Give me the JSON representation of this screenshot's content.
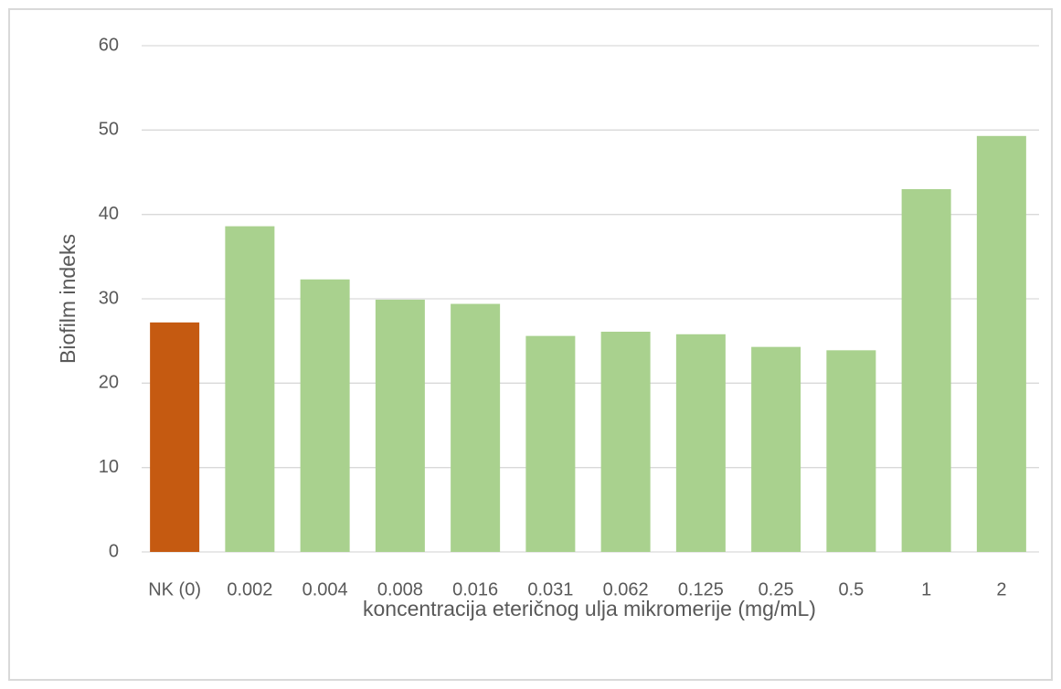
{
  "chart_data": {
    "type": "bar",
    "xlabel": "koncentracija eteričnog ulja mikromerije (mg/mL)",
    "ylabel": "Biofilm indeks",
    "categories": [
      "NK (0)",
      "0.002",
      "0.004",
      "0.008",
      "0.016",
      "0.031",
      "0.062",
      "0.125",
      "0.25",
      "0.5",
      "1",
      "2"
    ],
    "values": [
      27.2,
      38.6,
      32.3,
      29.9,
      29.4,
      25.6,
      26.1,
      25.8,
      24.3,
      23.9,
      43.0,
      49.3
    ],
    "colors": [
      "#c55a11",
      "#a9d18e",
      "#a9d18e",
      "#a9d18e",
      "#a9d18e",
      "#a9d18e",
      "#a9d18e",
      "#a9d18e",
      "#a9d18e",
      "#a9d18e",
      "#a9d18e",
      "#a9d18e"
    ],
    "ylim": [
      0,
      60
    ],
    "yticks": [
      0,
      10,
      20,
      30,
      40,
      50,
      60
    ],
    "grid": true
  }
}
